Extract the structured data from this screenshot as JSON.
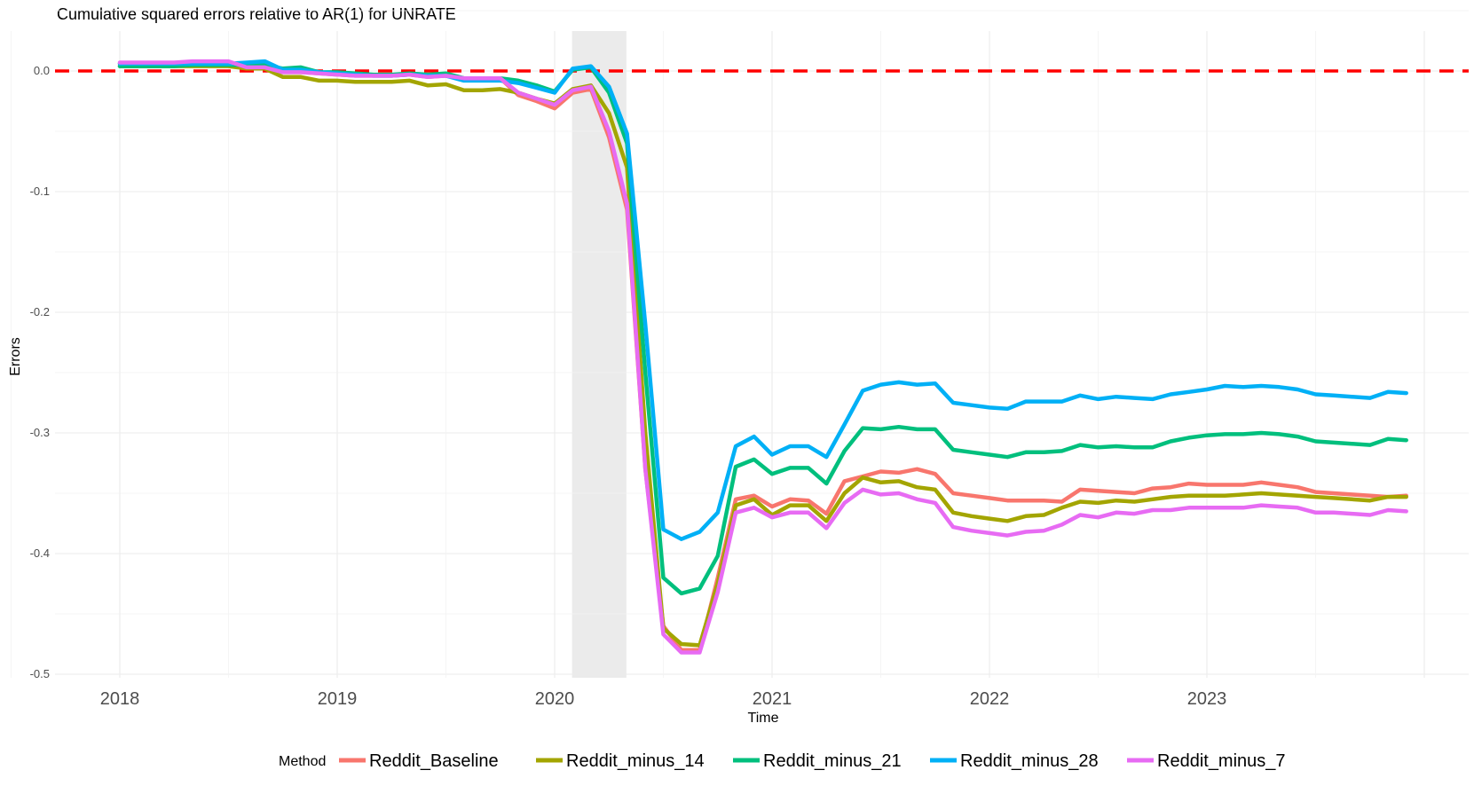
{
  "chart_data": {
    "type": "line",
    "title": "Cumulative squared errors relative to AR(1) for UNRATE",
    "xlabel": "Time",
    "ylabel": "Errors",
    "ylim": [
      -0.5,
      0.034
    ],
    "xlim": [
      2017.7,
      2024.2
    ],
    "x_ticks": [
      2018,
      2019,
      2020,
      2021,
      2022,
      2023
    ],
    "x_tick_labels": [
      "2018",
      "2019",
      "2020",
      "2021",
      "2022",
      "2023"
    ],
    "y_ticks": [
      0.0,
      -0.1,
      -0.2,
      -0.3,
      -0.4,
      -0.5
    ],
    "y_tick_labels": [
      "0.0",
      "-0.1",
      "-0.2",
      "-0.3",
      "-0.4",
      "-0.5"
    ],
    "grid": true,
    "reference_line": {
      "y": 0.0,
      "color": "#ff0000",
      "style": "dashed"
    },
    "shaded_region": {
      "x_start": 2020.08,
      "x_end": 2020.33,
      "color": "#ebebeb"
    },
    "legend": {
      "title": "Method",
      "position": "bottom"
    },
    "x": [
      2018.0,
      2018.083,
      2018.167,
      2018.25,
      2018.333,
      2018.417,
      2018.5,
      2018.583,
      2018.667,
      2018.75,
      2018.833,
      2018.917,
      2019.0,
      2019.083,
      2019.167,
      2019.25,
      2019.333,
      2019.417,
      2019.5,
      2019.583,
      2019.667,
      2019.75,
      2019.833,
      2019.917,
      2020.0,
      2020.083,
      2020.167,
      2020.25,
      2020.333,
      2020.417,
      2020.5,
      2020.583,
      2020.667,
      2020.75,
      2020.833,
      2020.917,
      2021.0,
      2021.083,
      2021.167,
      2021.25,
      2021.333,
      2021.417,
      2021.5,
      2021.583,
      2021.667,
      2021.75,
      2021.833,
      2021.917,
      2022.0,
      2022.083,
      2022.167,
      2022.25,
      2022.333,
      2022.417,
      2022.5,
      2022.583,
      2022.667,
      2022.75,
      2022.833,
      2022.917,
      2023.0,
      2023.083,
      2023.167,
      2023.25,
      2023.333,
      2023.417,
      2023.5,
      2023.583,
      2023.667,
      2023.75,
      2023.833,
      2023.917
    ],
    "series": [
      {
        "name": "Reddit_Baseline",
        "color": "#f8766d",
        "values": [
          0.006,
          0.006,
          0.006,
          0.006,
          0.007,
          0.007,
          0.007,
          0.002,
          0.003,
          -0.001,
          -0.001,
          -0.002,
          -0.003,
          -0.004,
          -0.004,
          -0.004,
          -0.003,
          -0.005,
          -0.004,
          -0.006,
          -0.006,
          -0.006,
          -0.02,
          -0.025,
          -0.031,
          -0.018,
          -0.015,
          -0.055,
          -0.115,
          -0.33,
          -0.46,
          -0.48,
          -0.48,
          -0.42,
          -0.355,
          -0.352,
          -0.361,
          -0.355,
          -0.356,
          -0.367,
          -0.34,
          -0.336,
          -0.332,
          -0.333,
          -0.33,
          -0.334,
          -0.35,
          -0.352,
          -0.354,
          -0.356,
          -0.356,
          -0.356,
          -0.357,
          -0.347,
          -0.348,
          -0.349,
          -0.35,
          -0.346,
          -0.345,
          -0.342,
          -0.343,
          -0.343,
          -0.343,
          -0.341,
          -0.343,
          -0.345,
          -0.349,
          -0.35,
          -0.351,
          -0.352,
          -0.353,
          -0.352
        ]
      },
      {
        "name": "Reddit_minus_14",
        "color": "#a3a500",
        "values": [
          0.004,
          0.004,
          0.004,
          0.004,
          0.004,
          0.004,
          0.004,
          0.002,
          0.002,
          -0.005,
          -0.005,
          -0.008,
          -0.008,
          -0.009,
          -0.009,
          -0.009,
          -0.008,
          -0.012,
          -0.011,
          -0.016,
          -0.016,
          -0.015,
          -0.018,
          -0.023,
          -0.027,
          -0.015,
          -0.012,
          -0.035,
          -0.08,
          -0.3,
          -0.462,
          -0.475,
          -0.476,
          -0.425,
          -0.36,
          -0.355,
          -0.368,
          -0.36,
          -0.36,
          -0.373,
          -0.35,
          -0.337,
          -0.341,
          -0.34,
          -0.345,
          -0.347,
          -0.366,
          -0.369,
          -0.371,
          -0.373,
          -0.369,
          -0.368,
          -0.362,
          -0.357,
          -0.358,
          -0.356,
          -0.357,
          -0.355,
          -0.353,
          -0.352,
          -0.352,
          -0.352,
          -0.351,
          -0.35,
          -0.351,
          -0.352,
          -0.353,
          -0.354,
          -0.355,
          -0.356,
          -0.353,
          -0.353
        ]
      },
      {
        "name": "Reddit_minus_21",
        "color": "#00bf7d",
        "values": [
          0.004,
          0.004,
          0.004,
          0.004,
          0.005,
          0.005,
          0.005,
          0.005,
          0.005,
          0.002,
          0.003,
          -0.001,
          -0.001,
          -0.002,
          -0.003,
          -0.003,
          -0.002,
          -0.003,
          -0.002,
          -0.006,
          -0.006,
          -0.006,
          -0.008,
          -0.012,
          -0.017,
          0.001,
          0.003,
          -0.018,
          -0.06,
          -0.25,
          -0.42,
          -0.433,
          -0.429,
          -0.402,
          -0.328,
          -0.322,
          -0.334,
          -0.329,
          -0.329,
          -0.342,
          -0.315,
          -0.296,
          -0.297,
          -0.295,
          -0.297,
          -0.297,
          -0.314,
          -0.316,
          -0.318,
          -0.32,
          -0.316,
          -0.316,
          -0.315,
          -0.31,
          -0.312,
          -0.311,
          -0.312,
          -0.312,
          -0.307,
          -0.304,
          -0.302,
          -0.301,
          -0.301,
          -0.3,
          -0.301,
          -0.303,
          -0.307,
          -0.308,
          -0.309,
          -0.31,
          -0.305,
          -0.306
        ]
      },
      {
        "name": "Reddit_minus_28",
        "color": "#00b0f6",
        "values": [
          0.006,
          0.006,
          0.006,
          0.006,
          0.006,
          0.006,
          0.006,
          0.007,
          0.008,
          0.001,
          0.001,
          -0.001,
          -0.002,
          -0.003,
          -0.004,
          -0.004,
          -0.003,
          -0.004,
          -0.004,
          -0.008,
          -0.008,
          -0.008,
          -0.01,
          -0.014,
          -0.018,
          0.002,
          0.004,
          -0.013,
          -0.052,
          -0.21,
          -0.38,
          -0.388,
          -0.382,
          -0.366,
          -0.311,
          -0.303,
          -0.318,
          -0.311,
          -0.311,
          -0.32,
          -0.293,
          -0.265,
          -0.26,
          -0.258,
          -0.26,
          -0.259,
          -0.275,
          -0.277,
          -0.279,
          -0.28,
          -0.274,
          -0.274,
          -0.274,
          -0.269,
          -0.272,
          -0.27,
          -0.271,
          -0.272,
          -0.268,
          -0.266,
          -0.264,
          -0.261,
          -0.262,
          -0.261,
          -0.262,
          -0.264,
          -0.268,
          -0.269,
          -0.27,
          -0.271,
          -0.266,
          -0.267
        ]
      },
      {
        "name": "Reddit_minus_7",
        "color": "#e76bf3",
        "values": [
          0.007,
          0.007,
          0.007,
          0.007,
          0.008,
          0.008,
          0.008,
          0.003,
          0.003,
          -0.001,
          -0.001,
          -0.002,
          -0.003,
          -0.004,
          -0.004,
          -0.004,
          -0.003,
          -0.005,
          -0.004,
          -0.006,
          -0.006,
          -0.006,
          -0.018,
          -0.023,
          -0.028,
          -0.016,
          -0.013,
          -0.05,
          -0.11,
          -0.33,
          -0.467,
          -0.482,
          -0.482,
          -0.432,
          -0.366,
          -0.362,
          -0.37,
          -0.366,
          -0.366,
          -0.379,
          -0.358,
          -0.347,
          -0.351,
          -0.35,
          -0.355,
          -0.358,
          -0.378,
          -0.381,
          -0.383,
          -0.385,
          -0.382,
          -0.381,
          -0.376,
          -0.368,
          -0.37,
          -0.366,
          -0.367,
          -0.364,
          -0.364,
          -0.362,
          -0.362,
          -0.362,
          -0.362,
          -0.36,
          -0.361,
          -0.362,
          -0.366,
          -0.366,
          -0.367,
          -0.368,
          -0.364,
          -0.365
        ]
      }
    ]
  }
}
